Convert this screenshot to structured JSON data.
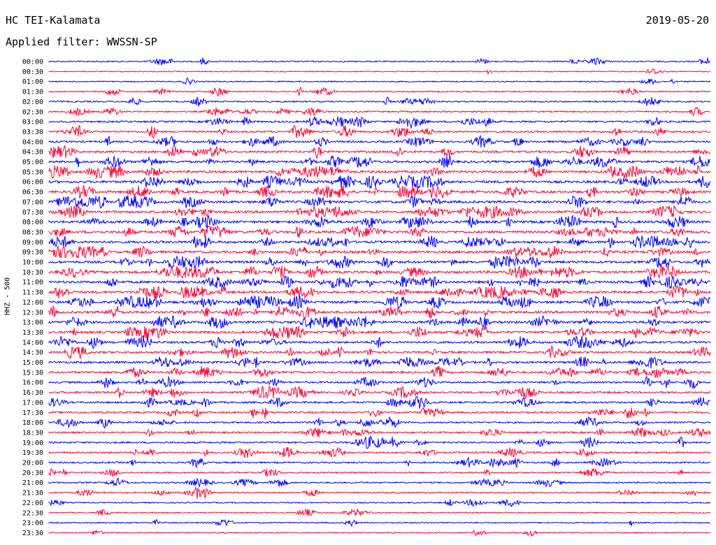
{
  "header": {
    "station": "HC TEI-Kalamata",
    "date": "2019-05-20",
    "filter": "Applied filter: WWSSN-SP"
  },
  "chart_data": {
    "type": "line",
    "title": "HC TEI-Kalamata",
    "ylabel": "HHZ - 500",
    "colors": [
      "#0000ff",
      "#ff0033"
    ],
    "row_labels": [
      "00:00",
      "00:30",
      "01:00",
      "01:30",
      "02:00",
      "02:30",
      "03:00",
      "03:30",
      "04:00",
      "04:30",
      "05:00",
      "05:30",
      "06:00",
      "06:30",
      "07:00",
      "07:30",
      "08:00",
      "08:30",
      "09:00",
      "09:30",
      "10:00",
      "10:30",
      "11:00",
      "11:30",
      "12:00",
      "12:30",
      "13:00",
      "13:30",
      "14:00",
      "14:30",
      "15:00",
      "15:30",
      "16:00",
      "16:30",
      "17:00",
      "17:30",
      "18:00",
      "18:30",
      "19:00",
      "19:30",
      "20:00",
      "20:30",
      "21:00",
      "21:30",
      "22:00",
      "22:30",
      "23:00",
      "23:30"
    ],
    "activity": [
      0.25,
      0.1,
      0.15,
      0.25,
      0.3,
      0.35,
      0.5,
      0.55,
      0.6,
      0.65,
      0.75,
      0.85,
      0.85,
      0.8,
      0.85,
      0.85,
      0.85,
      0.85,
      0.85,
      0.85,
      0.85,
      0.85,
      0.85,
      0.85,
      0.85,
      0.8,
      0.8,
      0.75,
      0.7,
      0.65,
      0.7,
      0.6,
      0.55,
      0.55,
      0.5,
      0.55,
      0.45,
      0.45,
      0.45,
      0.45,
      0.4,
      0.3,
      0.3,
      0.3,
      0.2,
      0.15,
      0.2,
      0.15
    ]
  }
}
